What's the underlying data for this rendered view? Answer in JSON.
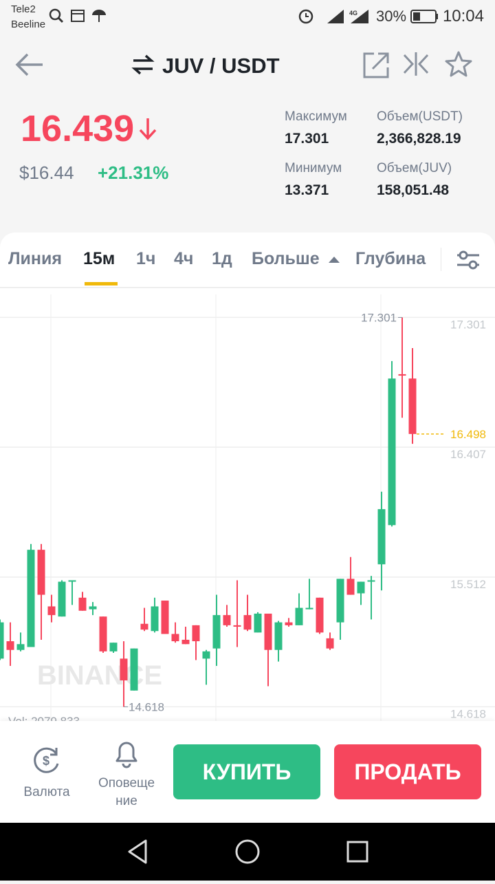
{
  "status_bar": {
    "carriers": [
      "Tele2",
      "Beeline"
    ],
    "battery": "30%",
    "time": "10:04"
  },
  "header": {
    "pair": "JUV / USDT"
  },
  "ticker": {
    "price": "16.439",
    "price_usd": "$16.44",
    "change": "+21.31%",
    "stats": [
      {
        "label": "Максимум",
        "value": "17.301"
      },
      {
        "label": "Объем(USDT)",
        "value": "2,366,828.19"
      },
      {
        "label": "Минимум",
        "value": "13.371"
      },
      {
        "label": "Объем(JUV)",
        "value": "158,051.48"
      }
    ]
  },
  "tabs": [
    "Линия",
    "15м",
    "1ч",
    "4ч",
    "1д",
    "Больше",
    "Глубина"
  ],
  "chart_data": {
    "type": "candlestick",
    "ylim": [
      14.53,
      17.45
    ],
    "yticks": [
      14.618,
      15.512,
      16.407,
      17.301
    ],
    "open": [
      14.95,
      15.07,
      15.01,
      15.03,
      15.7,
      15.31,
      15.24,
      15.48,
      15.37,
      15.29,
      15.24,
      15.0,
      14.95,
      14.73,
      15.19,
      15.14,
      15.35,
      15.12,
      15.08,
      15.18,
      14.95,
      15.02,
      15.25,
      15.18,
      15.25,
      15.13,
      15.26,
      15.01,
      15.2,
      15.18,
      15.29,
      15.37,
      15.09,
      15.2,
      15.5,
      15.4,
      15.48,
      15.6,
      15.87,
      16.91,
      16.88
    ],
    "high": [
      15.22,
      15.2,
      15.13,
      15.74,
      15.74,
      15.39,
      15.49,
      15.49,
      15.41,
      15.34,
      15.24,
      15.06,
      15.07,
      15.02,
      15.3,
      15.37,
      15.35,
      15.2,
      15.17,
      15.18,
      15.01,
      15.39,
      15.32,
      15.49,
      15.39,
      15.27,
      15.26,
      15.21,
      15.23,
      15.4,
      15.5,
      15.37,
      15.13,
      15.5,
      15.65,
      15.48,
      15.52,
      16.1,
      17.0,
      17.301,
      17.09
    ],
    "low": [
      14.94,
      14.9,
      15.0,
      15.03,
      15.08,
      15.2,
      15.24,
      15.32,
      15.28,
      15.25,
      14.99,
      14.99,
      14.618,
      14.73,
      15.14,
      15.13,
      15.12,
      15.06,
      15.05,
      14.94,
      14.77,
      14.9,
      15.17,
      15.03,
      15.14,
      15.13,
      14.76,
      14.93,
      15.17,
      15.18,
      15.29,
      15.12,
      15.01,
      15.08,
      15.39,
      15.32,
      15.22,
      15.42,
      15.86,
      16.61,
      16.43
    ],
    "close": [
      15.2,
      15.01,
      15.05,
      15.7,
      15.39,
      15.25,
      15.48,
      15.49,
      15.28,
      15.31,
      15.0,
      15.06,
      14.8,
      15.02,
      15.15,
      15.31,
      15.12,
      15.07,
      15.05,
      15.07,
      15.0,
      15.25,
      15.18,
      15.17,
      15.15,
      15.26,
      15.01,
      15.2,
      15.18,
      15.3,
      15.3,
      15.13,
      15.02,
      15.5,
      15.39,
      15.48,
      15.49,
      15.98,
      16.88,
      16.9,
      16.498
    ],
    "up_color": "#2ebd85",
    "down_color": "#f6465d",
    "high_label": 17.301,
    "low_label": 14.618,
    "last_price": 16.498,
    "watermark": "BINANCE",
    "volume_label": "Vol: 2079.833"
  },
  "bottom_bar": {
    "currency": "Валюта",
    "alerts": [
      "Оповеще",
      "ние"
    ],
    "buy": "КУПИТЬ",
    "sell": "ПРОДАТЬ"
  }
}
